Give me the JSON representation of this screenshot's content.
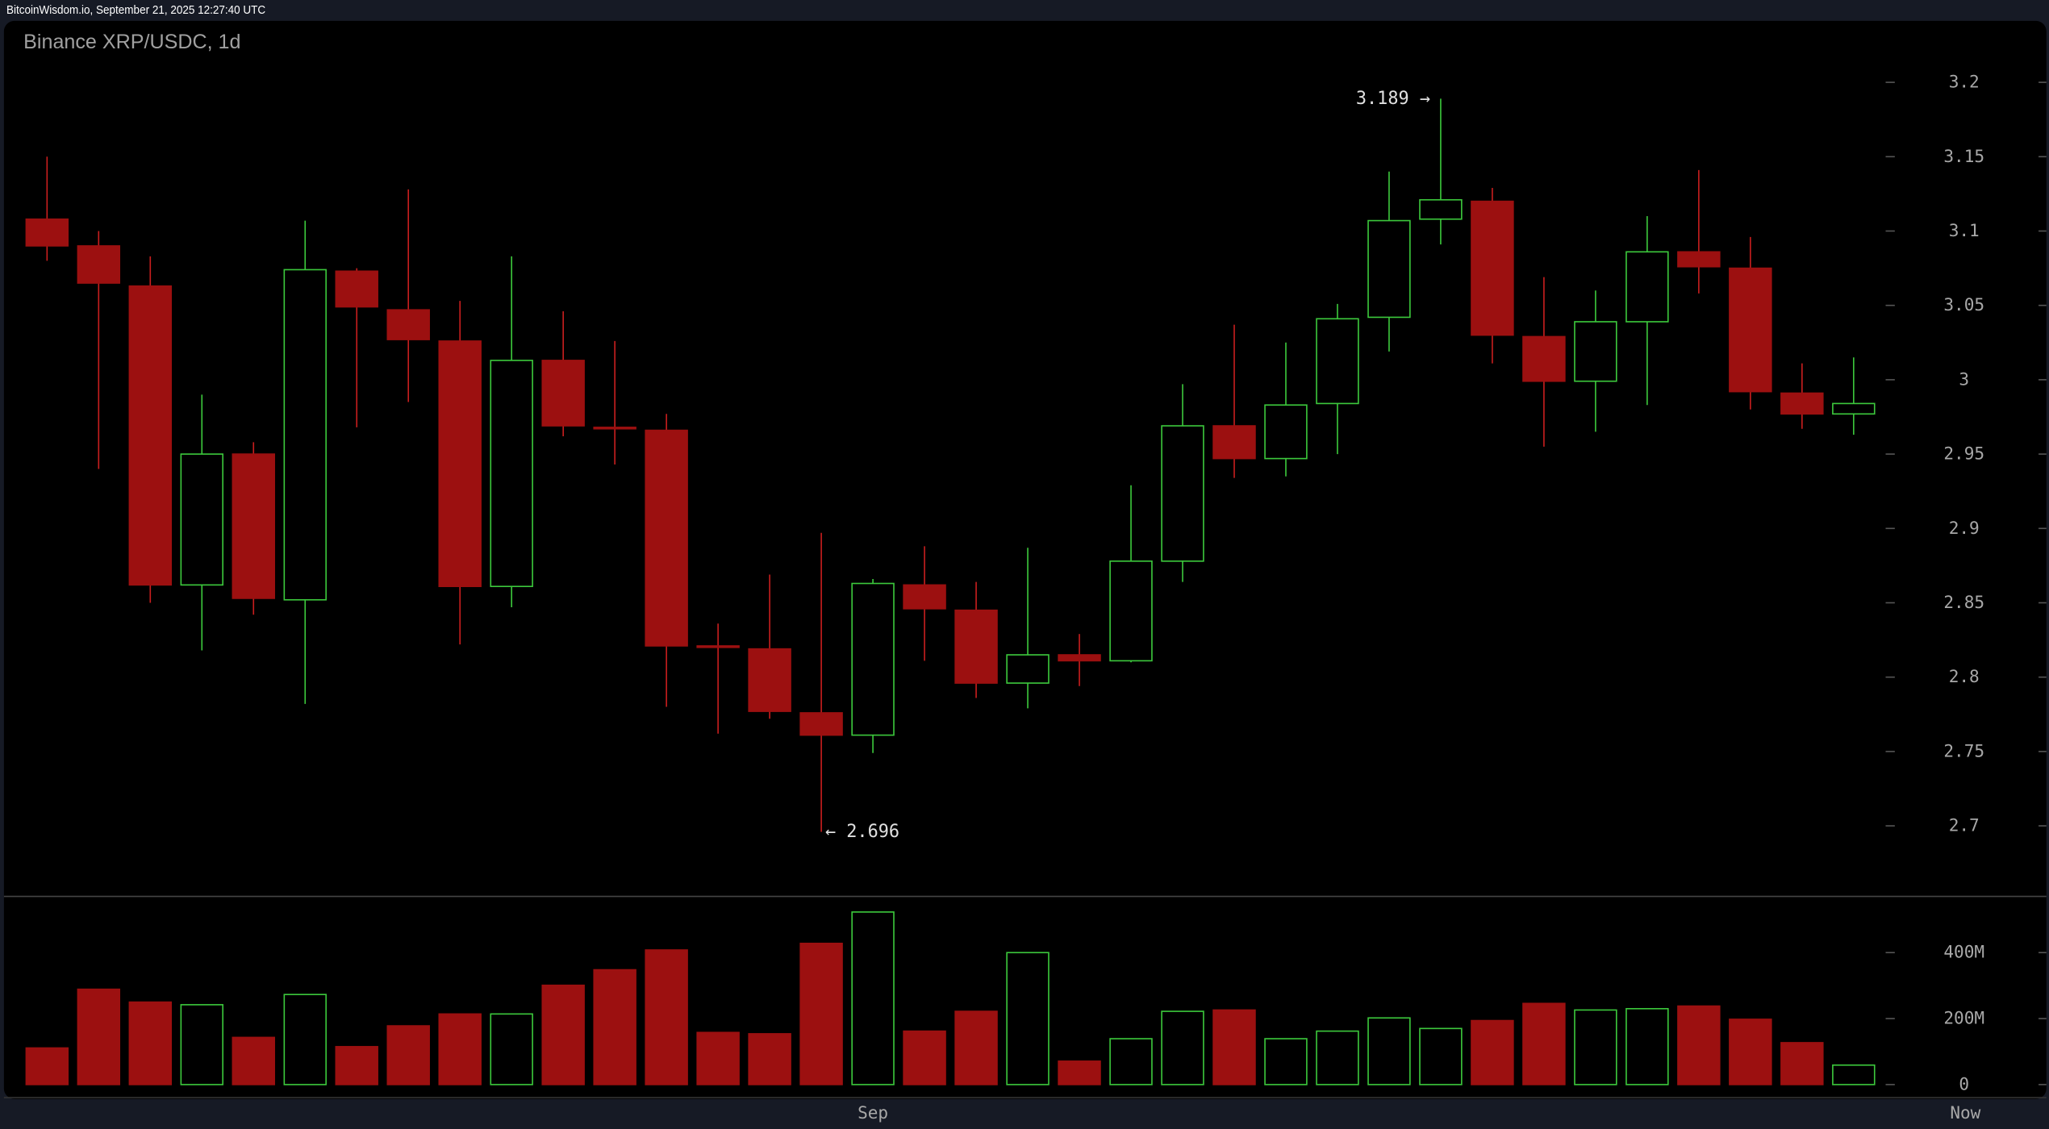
{
  "header": {
    "source_line": "BitcoinWisdom.io, September 21, 2025 12:27:40 UTC"
  },
  "colors": {
    "up": "#3cc83c",
    "down": "#9c1010",
    "down_stroke": "#c81e1e",
    "background": "#000000",
    "frame": "#161a25"
  },
  "chart_data": {
    "type": "candlestick",
    "title": "Binance XRP/USDC, 1d",
    "price_ticks": [
      "3.2",
      "3.15",
      "3.1",
      "3.05",
      "3",
      "2.95",
      "2.9",
      "2.85",
      "2.8",
      "2.75",
      "2.7"
    ],
    "volume_ticks": [
      "400M",
      "200M",
      "0"
    ],
    "x_labels": [
      {
        "label": "Sep",
        "index": 16
      },
      {
        "label": "Now",
        "index": 37
      }
    ],
    "ylim": [
      2.655,
      3.242
    ],
    "volume_max": 560,
    "annotations": {
      "high": "3.189 →",
      "high_value": 3.189,
      "high_index": 27,
      "low": "← 2.696",
      "low_value": 2.696,
      "low_index": 15
    },
    "candles": [
      {
        "o": 3.108,
        "h": 3.15,
        "l": 3.08,
        "c": 3.09,
        "v": 111
      },
      {
        "o": 3.09,
        "h": 3.1,
        "l": 2.94,
        "c": 3.065,
        "v": 289
      },
      {
        "o": 3.063,
        "h": 3.083,
        "l": 2.85,
        "c": 2.862,
        "v": 250
      },
      {
        "o": 2.862,
        "h": 2.99,
        "l": 2.818,
        "c": 2.95,
        "v": 242
      },
      {
        "o": 2.95,
        "h": 2.958,
        "l": 2.842,
        "c": 2.853,
        "v": 143
      },
      {
        "o": 2.852,
        "h": 3.107,
        "l": 2.782,
        "c": 3.074,
        "v": 273
      },
      {
        "o": 3.073,
        "h": 3.075,
        "l": 2.968,
        "c": 3.049,
        "v": 115
      },
      {
        "o": 3.047,
        "h": 3.128,
        "l": 2.985,
        "c": 3.027,
        "v": 178
      },
      {
        "o": 3.026,
        "h": 3.053,
        "l": 2.822,
        "c": 2.861,
        "v": 214
      },
      {
        "o": 2.861,
        "h": 3.083,
        "l": 2.847,
        "c": 3.013,
        "v": 214
      },
      {
        "o": 3.013,
        "h": 3.046,
        "l": 2.962,
        "c": 2.969,
        "v": 301
      },
      {
        "o": 2.968,
        "h": 3.026,
        "l": 2.943,
        "c": 2.967,
        "v": 348
      },
      {
        "o": 2.966,
        "h": 2.977,
        "l": 2.78,
        "c": 2.821,
        "v": 408
      },
      {
        "o": 2.821,
        "h": 2.836,
        "l": 2.762,
        "c": 2.82,
        "v": 158
      },
      {
        "o": 2.819,
        "h": 2.869,
        "l": 2.772,
        "c": 2.777,
        "v": 154
      },
      {
        "o": 2.776,
        "h": 2.897,
        "l": 2.696,
        "c": 2.761,
        "v": 428
      },
      {
        "o": 2.761,
        "h": 2.866,
        "l": 2.749,
        "c": 2.863,
        "v": 523
      },
      {
        "o": 2.862,
        "h": 2.888,
        "l": 2.811,
        "c": 2.846,
        "v": 162
      },
      {
        "o": 2.845,
        "h": 2.864,
        "l": 2.786,
        "c": 2.796,
        "v": 222
      },
      {
        "o": 2.796,
        "h": 2.887,
        "l": 2.779,
        "c": 2.815,
        "v": 400
      },
      {
        "o": 2.815,
        "h": 2.829,
        "l": 2.794,
        "c": 2.811,
        "v": 71
      },
      {
        "o": 2.811,
        "h": 2.929,
        "l": 2.81,
        "c": 2.878,
        "v": 139
      },
      {
        "o": 2.878,
        "h": 2.997,
        "l": 2.864,
        "c": 2.969,
        "v": 222
      },
      {
        "o": 2.969,
        "h": 3.037,
        "l": 2.934,
        "c": 2.947,
        "v": 226
      },
      {
        "o": 2.947,
        "h": 3.025,
        "l": 2.935,
        "c": 2.983,
        "v": 139
      },
      {
        "o": 2.984,
        "h": 3.051,
        "l": 2.95,
        "c": 3.041,
        "v": 162
      },
      {
        "o": 3.042,
        "h": 3.14,
        "l": 3.019,
        "c": 3.107,
        "v": 202
      },
      {
        "o": 3.108,
        "h": 3.189,
        "l": 3.091,
        "c": 3.121,
        "v": 170
      },
      {
        "o": 3.12,
        "h": 3.129,
        "l": 3.011,
        "c": 3.03,
        "v": 194
      },
      {
        "o": 3.029,
        "h": 3.069,
        "l": 2.955,
        "c": 2.999,
        "v": 246
      },
      {
        "o": 2.999,
        "h": 3.06,
        "l": 2.965,
        "c": 3.039,
        "v": 226
      },
      {
        "o": 3.039,
        "h": 3.11,
        "l": 2.983,
        "c": 3.086,
        "v": 230
      },
      {
        "o": 3.086,
        "h": 3.141,
        "l": 3.058,
        "c": 3.076,
        "v": 238
      },
      {
        "o": 3.075,
        "h": 3.096,
        "l": 2.98,
        "c": 2.992,
        "v": 198
      },
      {
        "o": 2.991,
        "h": 3.011,
        "l": 2.967,
        "c": 2.977,
        "v": 127
      },
      {
        "o": 2.977,
        "h": 3.015,
        "l": 2.963,
        "c": 2.984,
        "v": 59
      }
    ]
  }
}
